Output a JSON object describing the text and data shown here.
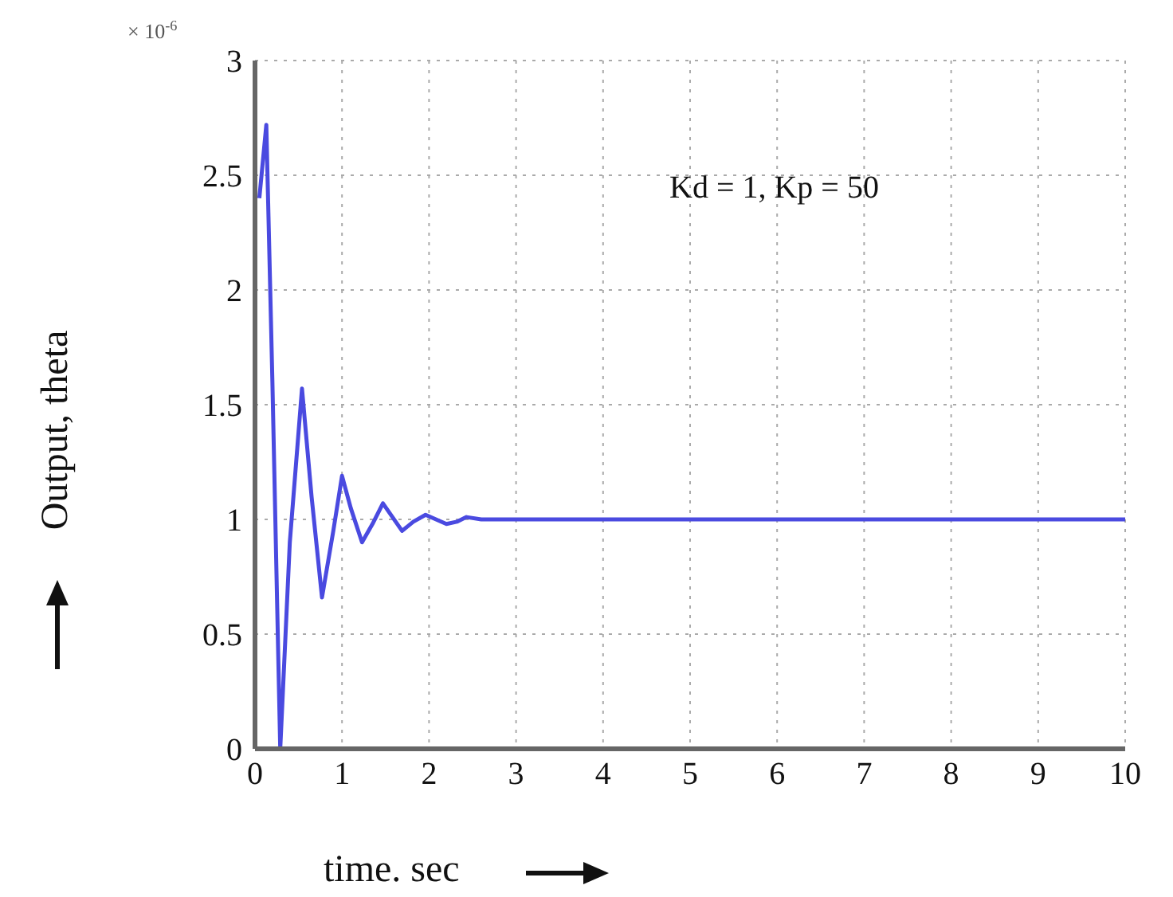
{
  "chart_data": {
    "type": "line",
    "xlabel": "time. sec",
    "ylabel": "Output, theta",
    "annotations": [
      "× 10$^{-6}$",
      "Kd = 1, Kp = 50"
    ],
    "xlim": [
      0,
      10
    ],
    "xticks": [
      0,
      1,
      2,
      3,
      4,
      5,
      6,
      7,
      8,
      9,
      10
    ],
    "ylim": [
      0,
      3
    ],
    "yticks": [
      0,
      0.5,
      1,
      1.5,
      2,
      2.5,
      3
    ],
    "grid": true,
    "line_style": "solid",
    "marker": "none",
    "series": [
      {
        "color": "#4a4ae0",
        "x": [
          0.05,
          0.13,
          0.2,
          0.29,
          0.4,
          0.54,
          0.65,
          0.77,
          0.9,
          1.0,
          1.1,
          1.23,
          1.35,
          1.47,
          1.58,
          1.69,
          1.82,
          1.96,
          2.08,
          2.2,
          2.32,
          2.43,
          2.6,
          2.8,
          3.2,
          4,
          5,
          6,
          7,
          8,
          9,
          10
        ],
        "values": [
          2.4,
          2.72,
          1.6,
          0,
          0.9,
          1.57,
          1.1,
          0.66,
          0.95,
          1.19,
          1.05,
          0.9,
          0.98,
          1.07,
          1.01,
          0.95,
          0.99,
          1.02,
          1.0,
          0.98,
          0.99,
          1.01,
          1.0,
          1.0,
          1.0,
          1.0,
          1.0,
          1.0,
          1.0,
          1.0,
          1.0,
          1.0
        ]
      }
    ]
  }
}
